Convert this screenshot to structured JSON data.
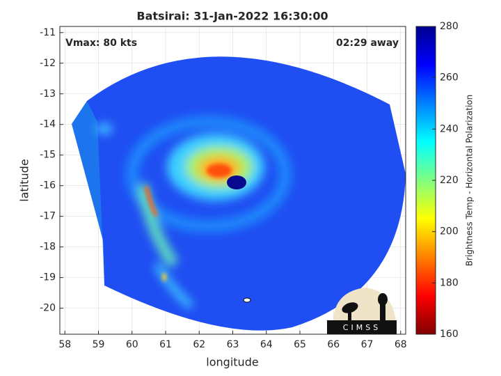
{
  "chart_data": {
    "type": "map",
    "title": "Batsirai: 31-Jan-2022 16:30:00",
    "annotations": [
      "Vmax: 80 kts",
      "02:29 away"
    ],
    "xlabel": "longitude",
    "ylabel": "latitude",
    "xlim": [
      57.85,
      68.15
    ],
    "xticks": [
      58,
      59,
      60,
      61,
      62,
      63,
      64,
      65,
      66,
      67,
      68
    ],
    "ylim": [
      -20.85,
      -10.8
    ],
    "yticks": [
      -11,
      -12,
      -13,
      -14,
      -15,
      -16,
      -17,
      -18,
      -19,
      -20
    ],
    "grid": true,
    "colorbar": {
      "label": "Brightness Temp - Horizontal Polarization",
      "colormap": "jet",
      "clim": [
        160,
        280
      ],
      "ticks": [
        160,
        180,
        200,
        220,
        240,
        260,
        280
      ]
    },
    "logo": "CIMSS"
  }
}
